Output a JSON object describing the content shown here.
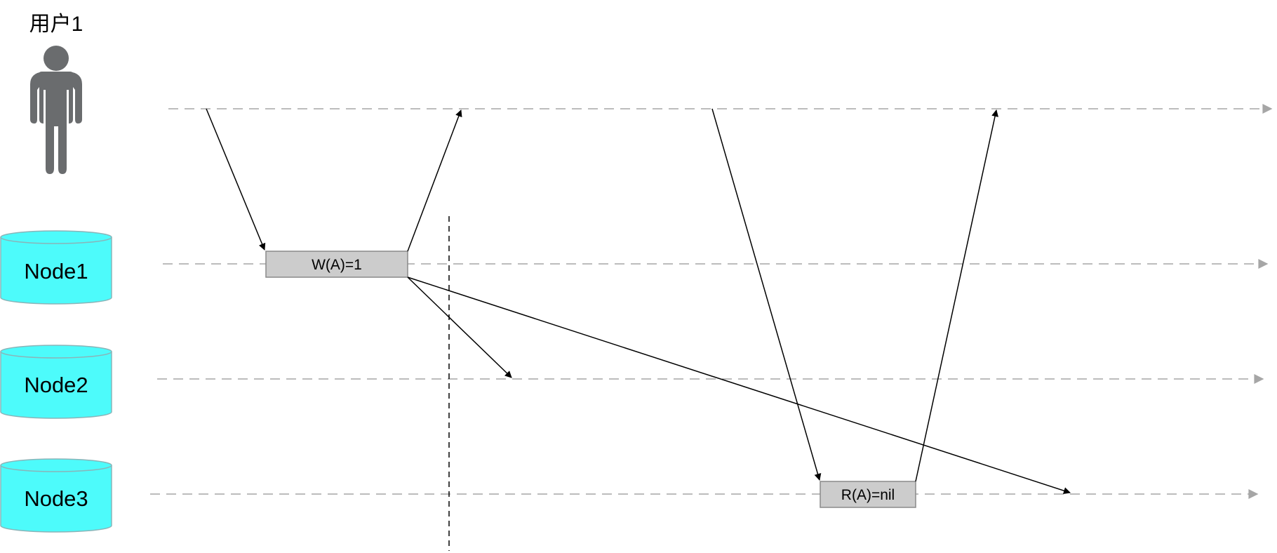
{
  "user": {
    "label": "用户1",
    "icon": "person-icon"
  },
  "nodes": [
    {
      "label": "Node1",
      "icon": "database-cylinder-icon"
    },
    {
      "label": "Node2",
      "icon": "database-cylinder-icon"
    },
    {
      "label": "Node3",
      "icon": "database-cylinder-icon"
    }
  ],
  "operations": {
    "write": "W(A)=1",
    "read": "R(A)=nil"
  },
  "colors": {
    "node_fill": "#4dfbfb",
    "node_stroke": "#8ab4b8",
    "op_fill": "#cccccc",
    "op_stroke": "#8a8a8a",
    "person": "#6a6c6e",
    "timeline": "#a6a6a6",
    "arrow": "#000000"
  }
}
